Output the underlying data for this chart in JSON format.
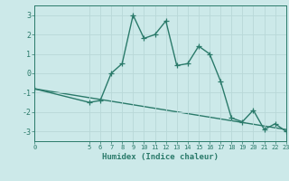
{
  "x": [
    0,
    5,
    6,
    7,
    8,
    9,
    10,
    11,
    12,
    13,
    14,
    15,
    16,
    17,
    18,
    19,
    20,
    21,
    22,
    23
  ],
  "y": [
    -0.8,
    -1.5,
    -1.4,
    0.0,
    0.5,
    3.0,
    1.8,
    2.0,
    2.7,
    0.4,
    0.5,
    1.4,
    1.0,
    -0.4,
    -2.3,
    -2.5,
    -1.9,
    -2.9,
    -2.6,
    -3.0
  ],
  "trend_x": [
    0,
    23
  ],
  "trend_y": [
    -0.8,
    -2.9
  ],
  "line_color": "#2a7a6a",
  "bg_color": "#cce9e9",
  "grid_color": "#b8d8d8",
  "xlabel": "Humidex (Indice chaleur)",
  "xlim": [
    0,
    23
  ],
  "ylim": [
    -3.5,
    3.5
  ],
  "yticks": [
    -3,
    -2,
    -1,
    0,
    1,
    2,
    3
  ],
  "xticks": [
    0,
    5,
    6,
    7,
    8,
    9,
    10,
    11,
    12,
    13,
    14,
    15,
    16,
    17,
    18,
    19,
    20,
    21,
    22,
    23
  ],
  "linewidth": 1.0,
  "markersize": 4.0
}
